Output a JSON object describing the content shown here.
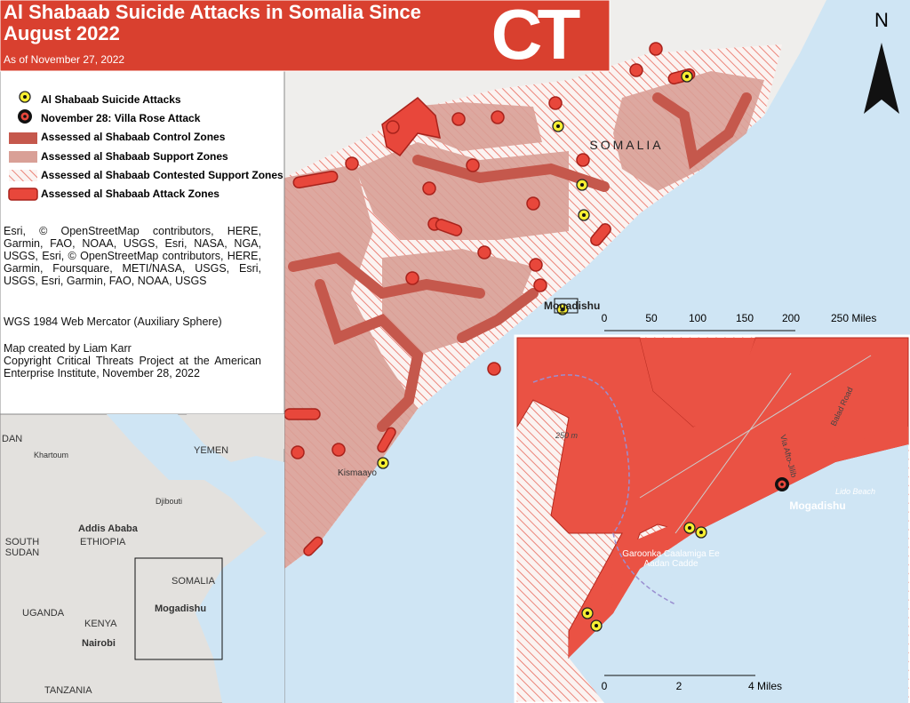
{
  "header": {
    "title": "Al Shabaab Suicide Attacks in Somalia Since August 2022",
    "subtitle": "As of November 27, 2022",
    "logo": "CT"
  },
  "north": "N",
  "legend": {
    "items": [
      "Al Shabaab Suicide Attacks",
      "November 28: Villa Rose Attack",
      "Assessed al Shabaab Control Zones",
      "Assessed al Shabaab Support Zones",
      "Assessed al Shabaab Contested Support Zones",
      "Assessed al Shabaab Attack Zones"
    ]
  },
  "credits": {
    "sources": "Esri, © OpenStreetMap contributors, HERE, Garmin, FAO, NOAA, USGS, Esri, NASA, NGA, USGS, Esri, © OpenStreetMap contributors, HERE, Garmin, Foursquare, METI/NASA, USGS, Esri, USGS, Esri, Garmin, FAO, NOAA, USGS",
    "projection": "WGS 1984 Web Mercator (Auxiliary Sphere)",
    "author": "Map created by Liam Karr",
    "copyright": "Copyright Critical Threats Project at the American Enterprise Institute, November 28, 2022"
  },
  "main_map": {
    "labels": {
      "country": "SOMALIA",
      "capital": "Mogadishu",
      "city": "Kismaayo"
    },
    "scale": [
      "0",
      "50",
      "100",
      "150",
      "200",
      "250 Miles"
    ]
  },
  "inset": {
    "labels": {
      "contour": "250 m",
      "road1": "Balad Road",
      "road2": "Via Afto-Jilib",
      "beach": "Lido Beach",
      "city": "Mogadishu",
      "airport": "Garoonka Caalamiga Ee Aadan Cadde"
    },
    "scale": [
      "0",
      "2",
      "4 Miles"
    ]
  },
  "locator": {
    "labels": [
      "DAN",
      "Khartoum",
      "YEMEN",
      "Djibouti",
      "Addis Ababa",
      "ETHIOPIA",
      "SOUTH SUDAN",
      "SOMALIA",
      "Mogadishu",
      "UGANDA",
      "KENYA",
      "Nairobi",
      "TANZANIA"
    ]
  }
}
